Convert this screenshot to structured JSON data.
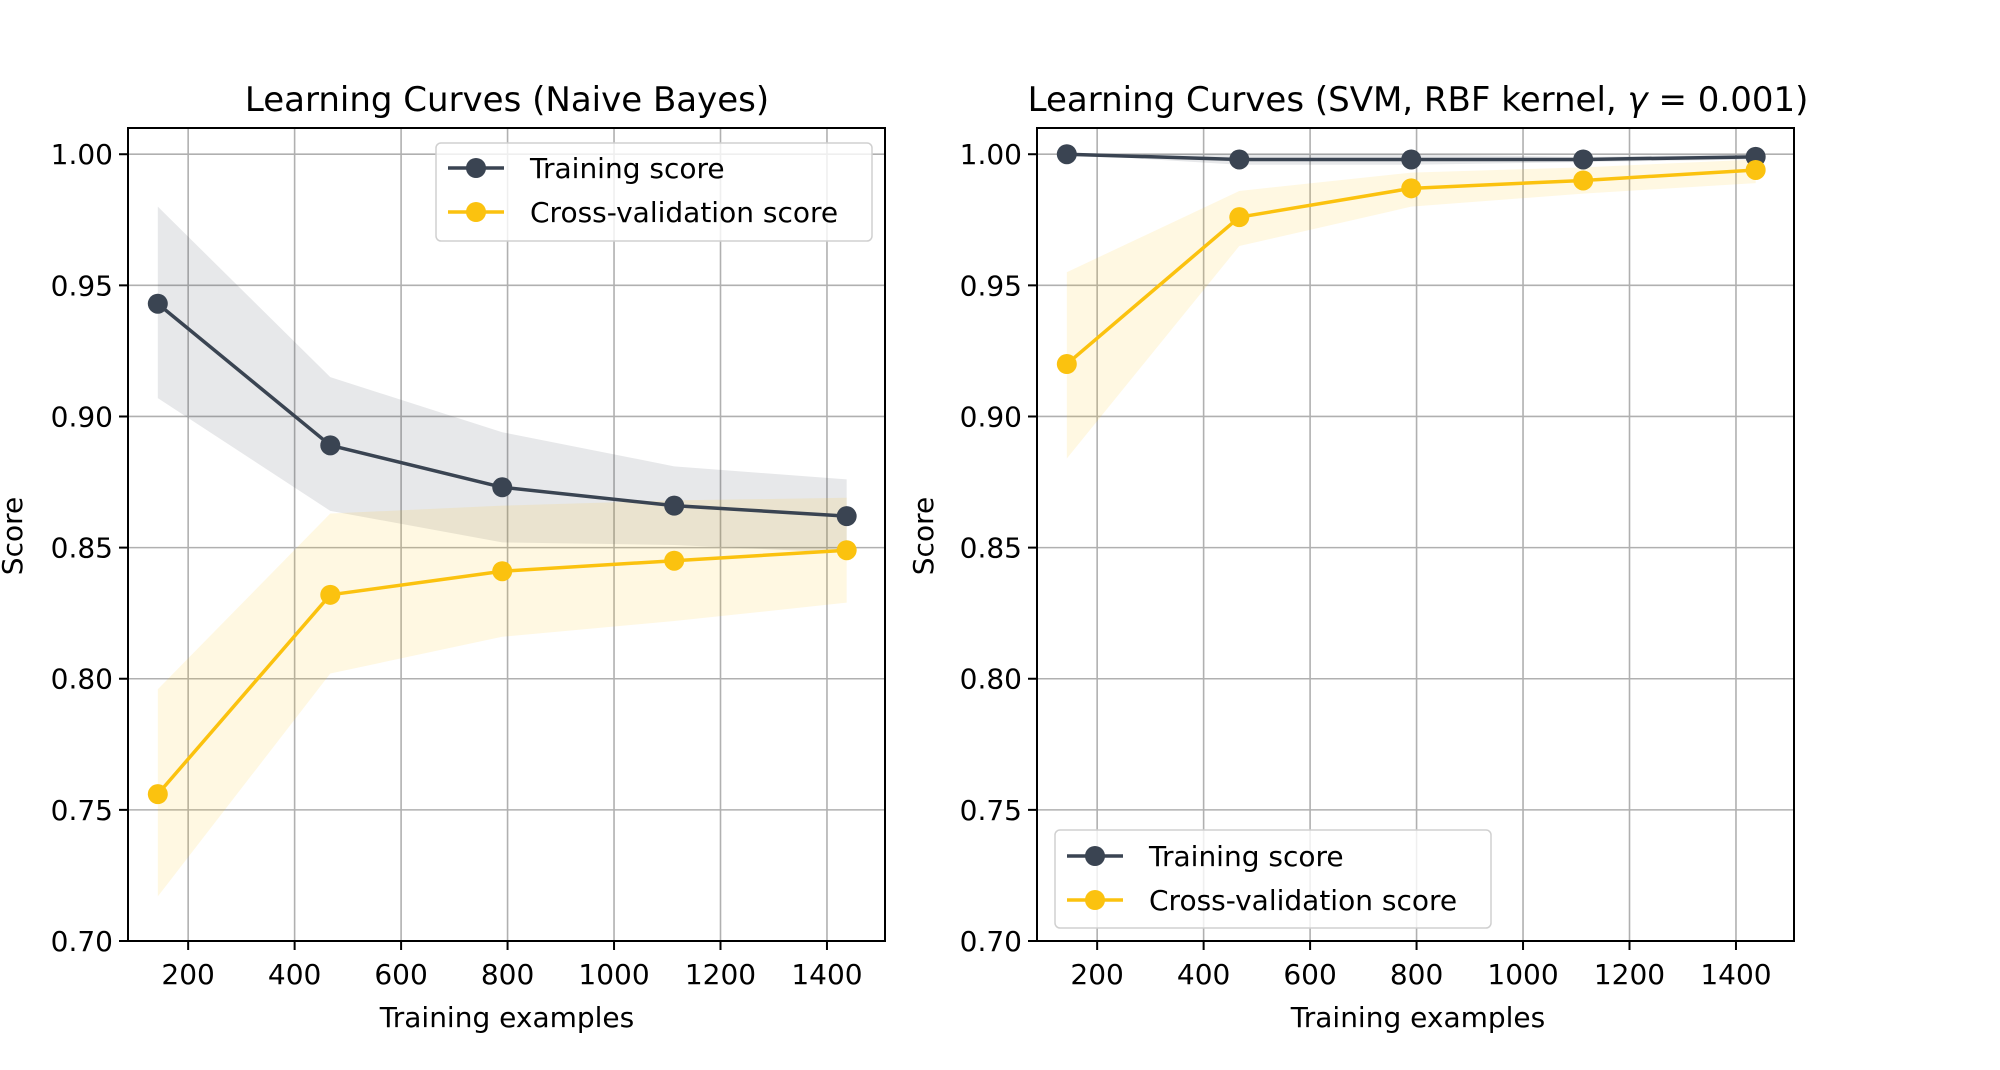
{
  "colors": {
    "training": "#3a4452",
    "cv": "#fbc20f",
    "grid": "#b0b0b0",
    "axes": "#000000"
  },
  "chart_data": [
    {
      "type": "line",
      "title": "Learning Curves (Naive Bayes)",
      "xlabel": "Training examples",
      "ylabel": "Score",
      "xlim": [
        87,
        1509
      ],
      "ylim": [
        0.7,
        1.01
      ],
      "xticks": [
        200,
        400,
        600,
        800,
        1000,
        1200,
        1400
      ],
      "yticks": [
        0.7,
        0.75,
        0.8,
        0.85,
        0.9,
        0.95,
        1.0
      ],
      "xtick_labels": [
        "200",
        "400",
        "600",
        "800",
        "1000",
        "1200",
        "1400"
      ],
      "ytick_labels": [
        "0.70",
        "0.75",
        "0.80",
        "0.85",
        "0.90",
        "0.95",
        "1.00"
      ],
      "grid": true,
      "legend_loc": "upper right",
      "x": [
        143,
        467,
        790,
        1113,
        1437
      ],
      "series": [
        {
          "name": "Training score",
          "color_key": "training",
          "values": [
            0.943,
            0.889,
            0.873,
            0.866,
            0.862
          ],
          "lower": [
            0.907,
            0.864,
            0.852,
            0.851,
            0.848
          ],
          "upper": [
            0.98,
            0.915,
            0.894,
            0.881,
            0.876
          ]
        },
        {
          "name": "Cross-validation score",
          "color_key": "cv",
          "values": [
            0.756,
            0.832,
            0.841,
            0.845,
            0.849
          ],
          "lower": [
            0.717,
            0.802,
            0.816,
            0.822,
            0.829
          ],
          "upper": [
            0.796,
            0.863,
            0.866,
            0.868,
            0.869
          ]
        }
      ]
    },
    {
      "type": "line",
      "title": "Learning Curves (SVM, RBF kernel, ",
      "title_gamma": "γ",
      "title_tail": " = 0.001)",
      "xlabel": "Training examples",
      "ylabel": "Score",
      "xlim": [
        87,
        1509
      ],
      "ylim": [
        0.7,
        1.01
      ],
      "xticks": [
        200,
        400,
        600,
        800,
        1000,
        1200,
        1400
      ],
      "yticks": [
        0.7,
        0.75,
        0.8,
        0.85,
        0.9,
        0.95,
        1.0
      ],
      "xtick_labels": [
        "200",
        "400",
        "600",
        "800",
        "1000",
        "1200",
        "1400"
      ],
      "ytick_labels": [
        "0.70",
        "0.75",
        "0.80",
        "0.85",
        "0.90",
        "0.95",
        "1.00"
      ],
      "grid": true,
      "legend_loc": "lower left",
      "x": [
        143,
        467,
        790,
        1113,
        1437
      ],
      "series": [
        {
          "name": "Training score",
          "color_key": "training",
          "values": [
            1.0,
            0.998,
            0.998,
            0.998,
            0.999
          ],
          "lower": [
            1.0,
            0.996,
            0.996,
            0.997,
            0.998
          ],
          "upper": [
            1.0,
            1.0,
            1.0,
            0.999,
            1.0
          ]
        },
        {
          "name": "Cross-validation score",
          "color_key": "cv",
          "values": [
            0.92,
            0.976,
            0.987,
            0.99,
            0.994
          ],
          "lower": [
            0.884,
            0.965,
            0.98,
            0.985,
            0.989
          ],
          "upper": [
            0.955,
            0.986,
            0.993,
            0.995,
            0.998
          ]
        }
      ]
    }
  ]
}
